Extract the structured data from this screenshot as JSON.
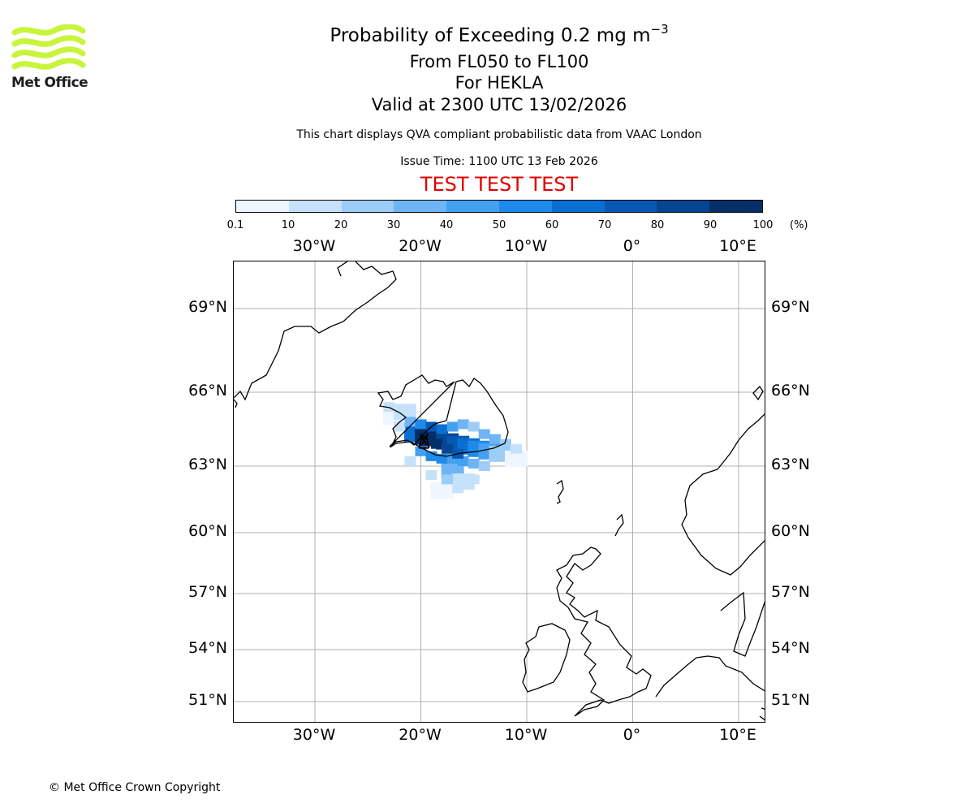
{
  "header": {
    "title": "Probability of Exceeding 0.2 mg m",
    "title_sup": "−3",
    "line1": "From FL050 to FL100",
    "line2": "For HEKLA",
    "line3": "Valid at 2300 UTC 13/02/2026",
    "disclaimer": "This chart displays QVA compliant probabilistic data from VAAC London",
    "issue_time": "Issue Time: 1100 UTC 13 Feb 2026",
    "test_banner": "TEST TEST TEST"
  },
  "logo": {
    "text": "Met Office",
    "colour": "#c8f53c"
  },
  "colorbar": {
    "ticks": [
      "0.1",
      "10",
      "20",
      "30",
      "40",
      "50",
      "60",
      "70",
      "80",
      "90",
      "100"
    ],
    "unit": "(%)",
    "colors": [
      "#eef6ff",
      "#c6e2fb",
      "#9ccdf8",
      "#6fb4f4",
      "#44a0f0",
      "#1f8aea",
      "#0a6fd2",
      "#0658b3",
      "#054592",
      "#042f69"
    ]
  },
  "axes": {
    "lon_labels": [
      "30°W",
      "20°W",
      "10°W",
      "0°",
      "10°E"
    ],
    "lon_values": [
      -30,
      -20,
      -10,
      0,
      10
    ],
    "lat_labels": [
      "69°N",
      "66°N",
      "63°N",
      "60°N",
      "57°N",
      "54°N",
      "51°N"
    ],
    "lat_values": [
      69,
      66,
      63,
      60,
      57,
      54,
      51
    ]
  },
  "map_data": {
    "volcano": "HEKLA",
    "volcano_lon": -19.7,
    "volcano_lat": 64.0,
    "probability_field": [
      {
        "lon": -22.5,
        "lat": 65.0,
        "p": 5
      },
      {
        "lon": -21.5,
        "lat": 65.2,
        "p": 15
      },
      {
        "lon": -20.5,
        "lat": 64.3,
        "p": 65
      },
      {
        "lon": -19.5,
        "lat": 64.2,
        "p": 92
      },
      {
        "lon": -18.5,
        "lat": 64.2,
        "p": 95
      },
      {
        "lon": -17.5,
        "lat": 64.0,
        "p": 85
      },
      {
        "lon": -16.5,
        "lat": 63.9,
        "p": 75
      },
      {
        "lon": -15.5,
        "lat": 63.8,
        "p": 65
      },
      {
        "lon": -14.5,
        "lat": 63.7,
        "p": 55
      },
      {
        "lon": -13.5,
        "lat": 63.6,
        "p": 40
      },
      {
        "lon": -12.5,
        "lat": 63.5,
        "p": 25
      },
      {
        "lon": -17.0,
        "lat": 62.8,
        "p": 30
      },
      {
        "lon": -16.0,
        "lat": 62.3,
        "p": 15
      },
      {
        "lon": -18.0,
        "lat": 61.9,
        "p": 8
      },
      {
        "lon": -11.0,
        "lat": 63.3,
        "p": 5
      }
    ]
  },
  "footer": {
    "copyright": "© Met Office Crown Copyright"
  }
}
